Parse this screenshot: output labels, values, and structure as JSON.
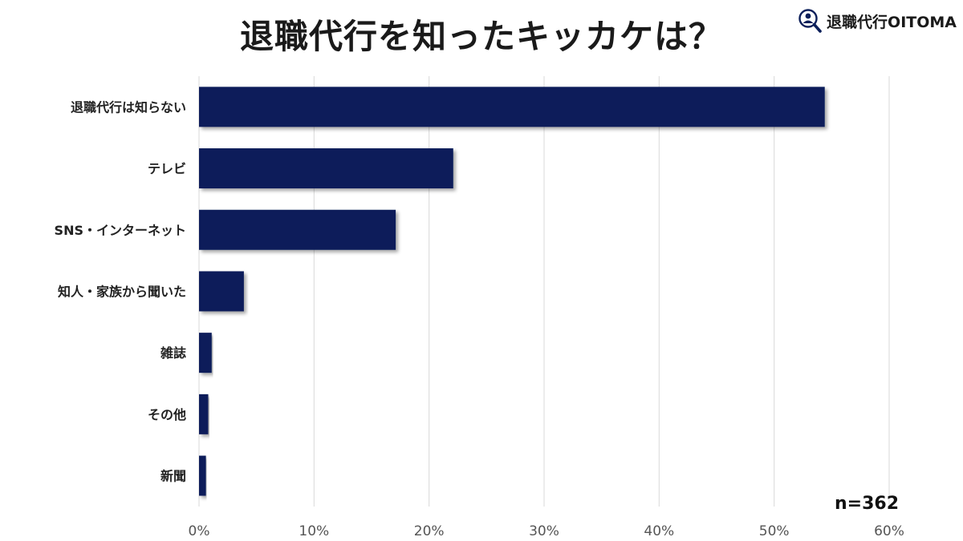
{
  "title": "退職代行を知ったキッカケは？",
  "logo": {
    "text": "退職代行OITOMA",
    "icon": "magnifier-person-icon"
  },
  "sample_size": "n=362",
  "colors": {
    "bar": "#0c1f5a",
    "grid": "#d9d9d9",
    "text": "#222222"
  },
  "chart_data": {
    "type": "bar",
    "orientation": "horizontal",
    "title": "退職代行を知ったキッカケは？",
    "categories": [
      "退職代行は知らない",
      "テレビ",
      "SNS・インターネット",
      "知人・家族から聞いた",
      "雑誌",
      "その他",
      "新聞"
    ],
    "values": [
      54.4,
      22.1,
      17.1,
      3.9,
      1.1,
      0.8,
      0.6
    ],
    "xlim": [
      0,
      60
    ],
    "x_ticks": [
      0,
      10,
      20,
      30,
      40,
      50,
      60
    ],
    "x_tick_labels": [
      "0%",
      "10%",
      "20%",
      "30%",
      "40%",
      "50%",
      "60%"
    ],
    "grid": true,
    "xlabel": "",
    "ylabel": ""
  }
}
